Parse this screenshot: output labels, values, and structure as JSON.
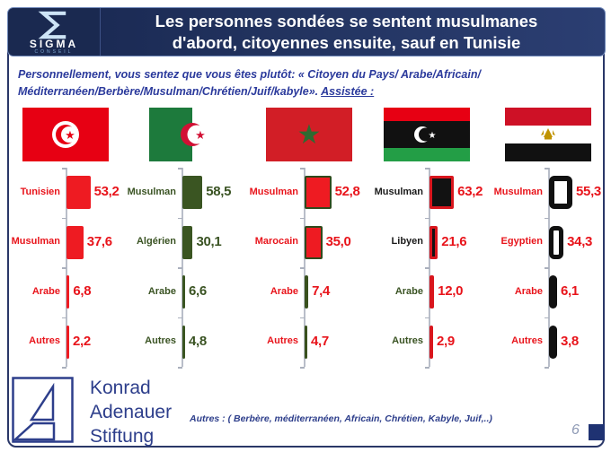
{
  "header": {
    "title_line1": "Les personnes sondées se sentent musulmanes",
    "title_line2": "d'abord, citoyennes ensuite, sauf en Tunisie",
    "logo_name": "SIGMA",
    "logo_sub": "CONSEIL"
  },
  "question": {
    "line1": "Personnellement, vous sentez que vous êtes plutôt: « Citoyen du Pays/ Arabe/Africain/",
    "line2": "Méditerranéen/Berbère/Musulman/Chrétien/Juif/kabyle».",
    "assistee": "Assistée :"
  },
  "chart_data": [
    {
      "type": "bar",
      "country": "Tunisie",
      "flag": "tunisia-flag",
      "categories": [
        "Tunisien",
        "Musulman",
        "Arabe",
        "Autres"
      ],
      "values": [
        53.2,
        37.6,
        6.8,
        2.2
      ],
      "value_labels": [
        "53,2",
        "37,6",
        "6,8",
        "2,2"
      ],
      "bar_color": "#ee1b22",
      "label_color": "#e8141b",
      "value_color": "#e8141b"
    },
    {
      "type": "bar",
      "country": "Algérie",
      "flag": "algeria-flag",
      "categories": [
        "Musulman",
        "Algérien",
        "Arabe",
        "Autres"
      ],
      "values": [
        58.5,
        30.1,
        6.6,
        4.8
      ],
      "value_labels": [
        "58,5",
        "30,1",
        "6,6",
        "4,8"
      ],
      "bar_color": "#3a5522",
      "label_color": "#3a5323",
      "value_color": "#3a5323"
    },
    {
      "type": "bar",
      "country": "Maroc",
      "flag": "morocco-flag",
      "categories": [
        "Musulman",
        "Marocain",
        "Arabe",
        "Autres"
      ],
      "values": [
        52.8,
        35.0,
        7.4,
        4.7
      ],
      "value_labels": [
        "52,8",
        "35,0",
        "7,4",
        "4,7"
      ],
      "bar_color": "#ee1b22",
      "label_color": "#e8141b",
      "value_color": "#e8141b",
      "bar_styles": [
        {
          "fill": "#ee1b22",
          "stroke": "#2f4a1c",
          "sw": 2
        },
        {
          "fill": "#ee1b22",
          "stroke": "#2f4a1c",
          "sw": 2
        },
        {
          "fill": "#39511e"
        },
        {
          "fill": "#39511e"
        }
      ]
    },
    {
      "type": "bar",
      "country": "Libye",
      "flag": "libya-flag",
      "categories": [
        "Musulman",
        "Libyen",
        "Arabe",
        "Autres"
      ],
      "values": [
        63.2,
        21.6,
        12.0,
        2.9
      ],
      "value_labels": [
        "63,2",
        "21,6",
        "12,0",
        "2,9"
      ],
      "bar_color": "#d9161d",
      "label_color": "#1a1a1a",
      "value_color": "#e8141b",
      "label_colors": [
        "#1a1a1a",
        "#1a1a1a",
        "#3a5323",
        "#3a5323"
      ],
      "bar_styles": [
        {
          "fill": "#121212",
          "stroke": "#d9161d",
          "sw": 3
        },
        {
          "fill": "#121212",
          "stroke": "#d9161d",
          "sw": 3
        },
        {
          "fill": "#d9161d"
        },
        {
          "fill": "#d9161d"
        }
      ]
    },
    {
      "type": "bar",
      "country": "Egypte",
      "flag": "egypt-flag",
      "categories": [
        "Musulman",
        "Egyptien",
        "Arabe",
        "Autres"
      ],
      "values": [
        55.3,
        34.3,
        6.1,
        3.8
      ],
      "value_labels": [
        "55,3",
        "34,3",
        "6,1",
        "3,8"
      ],
      "bar_color": "#111111",
      "label_color": "#e8141b",
      "value_color": "#e8141b",
      "bar_styles": [
        {
          "fill": "#ffffff",
          "stroke": "#111111",
          "sw": 6
        },
        {
          "fill": "#ffffff",
          "stroke": "#111111",
          "sw": 5
        },
        {
          "fill": "#111111"
        },
        {
          "fill": "#111111"
        }
      ]
    }
  ],
  "footer": {
    "org": [
      "Konrad",
      "Adenauer",
      "Stiftung"
    ],
    "note": "Autres : ( Berbère, méditerranéen, Africain, Chrétien, Kabyle, Juif,..)",
    "page": "6"
  },
  "colors": {
    "header_navy": "#22335f",
    "question_blue": "#2b3a9c",
    "red": "#e8141b",
    "dark_green": "#3a5323",
    "black": "#121212",
    "kas_navy": "#2d3e8b"
  }
}
